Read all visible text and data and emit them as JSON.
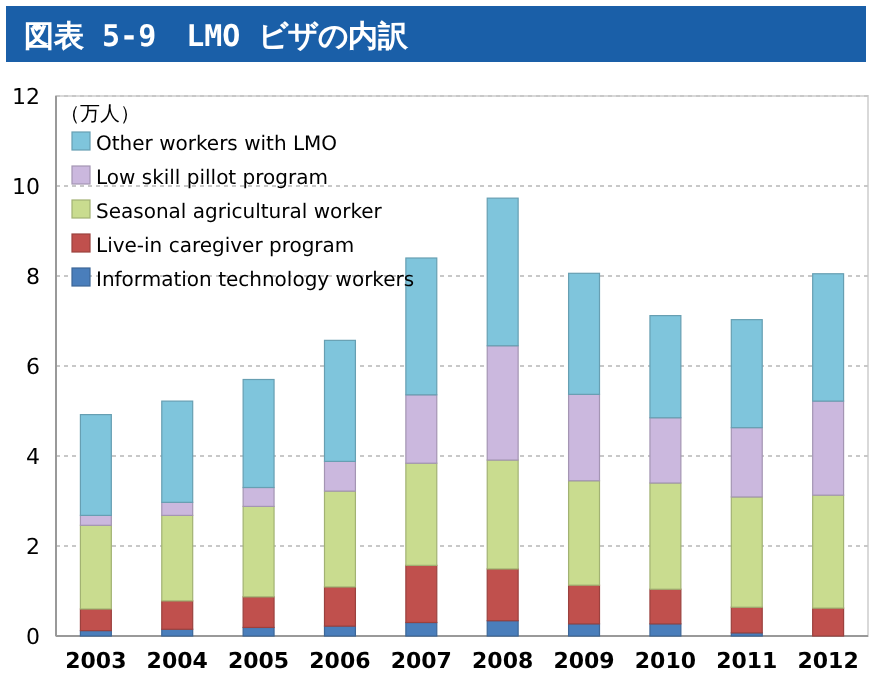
{
  "chart_data": {
    "type": "bar",
    "title": "図表 5-9　LMO ビザの内訳",
    "ylabel": "（万人）",
    "stacked": true,
    "categories": [
      "2003",
      "2004",
      "2005",
      "2006",
      "2007",
      "2008",
      "2009",
      "2010",
      "2011",
      "2012"
    ],
    "series": [
      {
        "name": "Information technology workers",
        "color": "#4a7ebb",
        "values": [
          0.12,
          0.15,
          0.19,
          0.22,
          0.3,
          0.34,
          0.27,
          0.27,
          0.07,
          null
        ]
      },
      {
        "name": "Live-in caregiver program",
        "color": "#c0504d",
        "values": [
          0.48,
          0.63,
          0.68,
          0.87,
          1.27,
          1.15,
          0.86,
          0.77,
          0.57,
          0.62
        ]
      },
      {
        "name": "Seasonal agricultural worker",
        "color": "#c9dc8f",
        "values": [
          1.86,
          1.9,
          2.01,
          2.13,
          2.27,
          2.42,
          2.32,
          2.36,
          2.45,
          2.51
        ]
      },
      {
        "name": "Low skill pillot program",
        "color": "#cbb8de",
        "values": [
          0.22,
          0.29,
          0.42,
          0.66,
          1.52,
          2.54,
          1.92,
          1.45,
          1.54,
          2.09
        ]
      },
      {
        "name": "Other workers with LMO",
        "color": "#7fc5dc",
        "values": [
          2.24,
          2.25,
          2.4,
          2.69,
          3.04,
          3.28,
          2.69,
          2.27,
          2.4,
          2.83
        ]
      }
    ],
    "ylim": [
      0,
      12
    ],
    "yticks": [
      0,
      2,
      4,
      6,
      8,
      10,
      12
    ],
    "grid": "y",
    "legend": "top left"
  }
}
